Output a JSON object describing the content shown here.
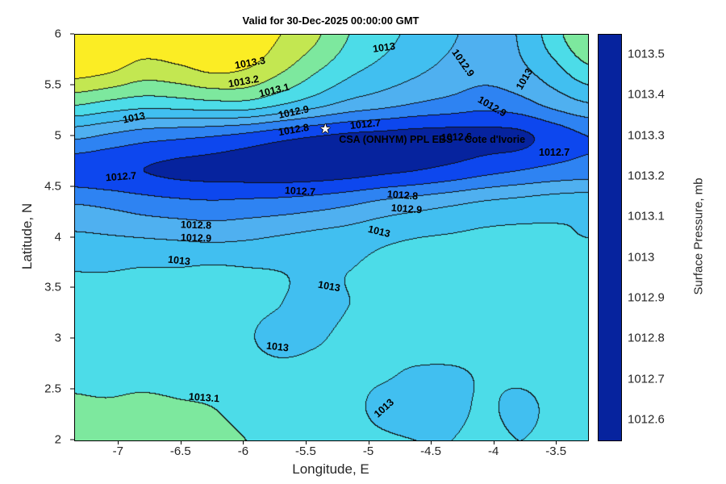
{
  "title": "Valid for 30-Dec-2025 00:00:00 GMT",
  "axes": {
    "xlabel": "Longitude, E",
    "ylabel": "Latitude, N",
    "xticks": [
      {
        "label": "-7",
        "value": -7
      },
      {
        "label": "-6.5",
        "value": -6.5
      },
      {
        "label": "-6",
        "value": -6
      },
      {
        "label": "-5.5",
        "value": -5.5
      },
      {
        "label": "-5",
        "value": -5
      },
      {
        "label": "-4.5",
        "value": -4.5
      },
      {
        "label": "-4",
        "value": -4
      },
      {
        "label": "-3.5",
        "value": -3.5
      }
    ],
    "yticks": [
      {
        "label": "6",
        "value": 6
      },
      {
        "label": "5.5",
        "value": 5.5
      },
      {
        "label": "5",
        "value": 5
      },
      {
        "label": "4.5",
        "value": 4.5
      },
      {
        "label": "4",
        "value": 4
      },
      {
        "label": "3.5",
        "value": 3.5
      },
      {
        "label": "3",
        "value": 3
      },
      {
        "label": "2.5",
        "value": 2.5
      },
      {
        "label": "2",
        "value": 2
      }
    ]
  },
  "colorbar": {
    "label": "Surface Pressure, mb",
    "vmin": 1012.55,
    "vmax": 1013.55,
    "band_start": 1012.5,
    "band_step": 0.1,
    "band_colors": [
      "#06239e",
      "#0d47ee",
      "#2e83f2",
      "#4fb0f0",
      "#41bff0",
      "#4cdce8",
      "#7de89e",
      "#c3e751",
      "#fbed24",
      "#fba32a",
      "#f4511c"
    ],
    "ticks": [
      {
        "label": "1013.5",
        "value": 1013.5
      },
      {
        "label": "1013.4",
        "value": 1013.4
      },
      {
        "label": "1013.3",
        "value": 1013.3
      },
      {
        "label": "1013.2",
        "value": 1013.2
      },
      {
        "label": "1013.1",
        "value": 1013.1
      },
      {
        "label": "1013",
        "value": 1013
      },
      {
        "label": "1012.9",
        "value": 1012.9
      },
      {
        "label": "1012.8",
        "value": 1012.8
      },
      {
        "label": "1012.7",
        "value": 1012.7
      },
      {
        "label": "1012.6",
        "value": 1012.6
      }
    ]
  },
  "chart_data": {
    "type": "heatmap",
    "subtype": "filled-contour",
    "title": "Valid for 30-Dec-2025 00:00:00 GMT",
    "xlabel": "Longitude, E",
    "ylabel": "Latitude, N",
    "unit": "mb",
    "xlim": [
      -7.35,
      -3.25
    ],
    "ylim": [
      2,
      6
    ],
    "levels": [
      1012.6,
      1012.7,
      1012.8,
      1012.9,
      1013,
      1013.1,
      1013.2,
      1013.3,
      1013.4,
      1013.5
    ],
    "grid": {
      "lon_min": -7.35,
      "lon_max": -3.25,
      "lat_min": 2,
      "lat_max": 6,
      "row_order": "north-to-south",
      "lats": [
        6,
        5.667,
        5.333,
        5,
        4.667,
        4.333,
        4,
        3.667,
        3.333,
        3,
        2.667,
        2.333,
        2
      ],
      "values": [
        [
          1013.39,
          1013.38,
          1013.36,
          1013.38,
          1013.39,
          1013.36,
          1013.3,
          1013.22,
          1013.1,
          1013.03,
          1012.97,
          1012.91,
          1012.87,
          1012.91,
          1013.06,
          1013.2
        ],
        [
          1013.35,
          1013.32,
          1013.26,
          1013.28,
          1013.32,
          1013.3,
          1013.22,
          1013.12,
          1013.03,
          1012.97,
          1012.92,
          1012.87,
          1012.84,
          1012.88,
          1012.97,
          1013.08
        ],
        [
          1013.12,
          1013.08,
          1013.05,
          1013.06,
          1013.08,
          1013.08,
          1013.02,
          1012.95,
          1012.88,
          1012.84,
          1012.8,
          1012.77,
          1012.74,
          1012.77,
          1012.84,
          1012.9
        ],
        [
          1012.82,
          1012.78,
          1012.74,
          1012.72,
          1012.7,
          1012.67,
          1012.63,
          1012.6,
          1012.58,
          1012.57,
          1012.56,
          1012.56,
          1012.57,
          1012.58,
          1012.64,
          1012.7
        ],
        [
          1012.64,
          1012.62,
          1012.6,
          1012.58,
          1012.57,
          1012.56,
          1012.55,
          1012.55,
          1012.56,
          1012.58,
          1012.6,
          1012.63,
          1012.67,
          1012.7,
          1012.73,
          1012.75
        ],
        [
          1012.8,
          1012.78,
          1012.75,
          1012.73,
          1012.72,
          1012.73,
          1012.74,
          1012.76,
          1012.79,
          1012.83,
          1012.86,
          1012.89,
          1012.92,
          1012.94,
          1012.96,
          1012.97
        ],
        [
          1012.92,
          1012.91,
          1012.9,
          1012.89,
          1012.88,
          1012.89,
          1012.91,
          1012.93,
          1012.95,
          1012.98,
          1013.0,
          1013.01,
          1013.02,
          1013.02,
          1013.01,
          1013.0
        ],
        [
          1013.0,
          1013.0,
          1013.01,
          1013.01,
          1013.02,
          1013.01,
          1013.0,
          1012.98,
          1013.0,
          1013.02,
          1013.03,
          1013.03,
          1013.03,
          1013.03,
          1013.03,
          1013.02
        ],
        [
          1013.02,
          1013.03,
          1013.03,
          1013.03,
          1013.03,
          1013.02,
          1013.0,
          1012.97,
          1013.0,
          1013.02,
          1013.03,
          1013.04,
          1013.04,
          1013.03,
          1013.03,
          1013.03
        ],
        [
          1013.04,
          1013.04,
          1013.04,
          1013.04,
          1013.03,
          1013.01,
          1012.97,
          1012.99,
          1013.02,
          1013.03,
          1013.04,
          1013.04,
          1013.04,
          1013.04,
          1013.03,
          1013.03
        ],
        [
          1013.08,
          1013.07,
          1013.07,
          1013.06,
          1013.05,
          1013.04,
          1013.03,
          1013.03,
          1013.02,
          1013.01,
          1012.99,
          1012.99,
          1013.01,
          1013.02,
          1013.03,
          1013.03
        ],
        [
          1013.11,
          1013.11,
          1013.12,
          1013.11,
          1013.1,
          1013.07,
          1013.05,
          1013.04,
          1013.02,
          1012.98,
          1012.97,
          1012.98,
          1013.01,
          1012.98,
          1013.02,
          1013.03
        ],
        [
          1013.12,
          1013.13,
          1013.13,
          1013.12,
          1013.12,
          1013.1,
          1013.07,
          1013.05,
          1013.03,
          1013.01,
          1013.0,
          1013.0,
          1013.02,
          1013.0,
          1013.02,
          1013.03
        ]
      ]
    },
    "contour_labels": [
      {
        "text": "1013.3",
        "lon": -5.95,
        "lat": 5.72,
        "rot": -10
      },
      {
        "text": "1013.2",
        "lon": -6.0,
        "lat": 5.54,
        "rot": -10
      },
      {
        "text": "1013.1",
        "lon": -5.76,
        "lat": 5.45,
        "rot": -14
      },
      {
        "text": "1013",
        "lon": -6.88,
        "lat": 5.18,
        "rot": -12
      },
      {
        "text": "1012.9",
        "lon": -5.6,
        "lat": 5.24,
        "rot": -12
      },
      {
        "text": "1012.8",
        "lon": -5.6,
        "lat": 5.06,
        "rot": -10
      },
      {
        "text": "1012.7",
        "lon": -5.03,
        "lat": 5.12,
        "rot": -6
      },
      {
        "text": "1012.7",
        "lon": -6.98,
        "lat": 4.6,
        "rot": -4
      },
      {
        "text": "1012.6",
        "lon": -4.3,
        "lat": 4.99,
        "rot": -2
      },
      {
        "text": "1012.7",
        "lon": -3.52,
        "lat": 4.84,
        "rot": 0
      },
      {
        "text": "1012.9",
        "lon": -4.25,
        "lat": 5.72,
        "rot": 55
      },
      {
        "text": "1013",
        "lon": -4.88,
        "lat": 5.87,
        "rot": -8
      },
      {
        "text": "1013",
        "lon": -3.76,
        "lat": 5.56,
        "rot": -60
      },
      {
        "text": "1012.9",
        "lon": -4.02,
        "lat": 5.29,
        "rot": 30
      },
      {
        "text": "1012.7",
        "lon": -5.55,
        "lat": 4.46,
        "rot": 3
      },
      {
        "text": "1012.8",
        "lon": -4.73,
        "lat": 4.42,
        "rot": 4
      },
      {
        "text": "1012.9",
        "lon": -4.7,
        "lat": 4.28,
        "rot": 4
      },
      {
        "text": "1012.8",
        "lon": -6.38,
        "lat": 4.12,
        "rot": 2
      },
      {
        "text": "1012.9",
        "lon": -6.38,
        "lat": 4.0,
        "rot": 2
      },
      {
        "text": "1013",
        "lon": -4.92,
        "lat": 4.06,
        "rot": 14
      },
      {
        "text": "1013",
        "lon": -6.52,
        "lat": 3.77,
        "rot": 6
      },
      {
        "text": "1013",
        "lon": -5.32,
        "lat": 3.52,
        "rot": 10
      },
      {
        "text": "1013",
        "lon": -5.73,
        "lat": 2.92,
        "rot": 6
      },
      {
        "text": "1013.1",
        "lon": -6.32,
        "lat": 2.42,
        "rot": 4
      },
      {
        "text": "1013",
        "lon": -4.88,
        "lat": 2.32,
        "rot": -42
      }
    ],
    "annotation": {
      "marker_glyph": "★",
      "star_lon": -5.35,
      "star_lat": 5.06,
      "text_lon": -5.24,
      "text_lat": 4.97,
      "text": "CSA (ONHYM) PPL EBS  - Cote d'Ivorie"
    }
  }
}
